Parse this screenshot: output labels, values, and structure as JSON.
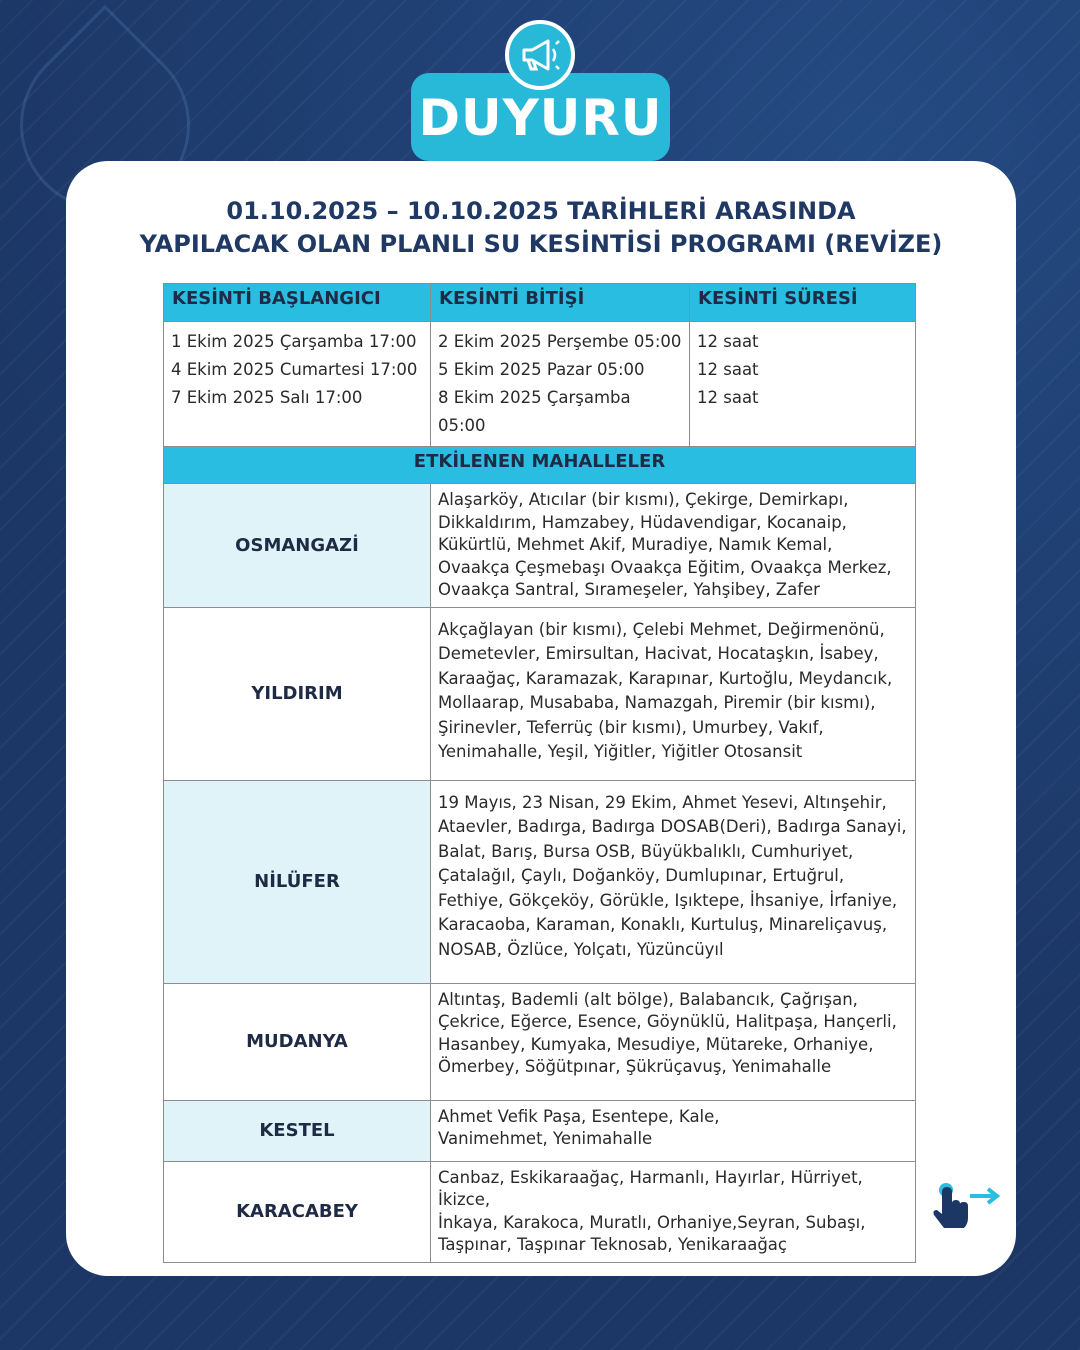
{
  "badge": {
    "label": "DUYURU",
    "icon": "megaphone-icon"
  },
  "title": {
    "line1": "01.10.2025 – 10.10.2025 TARİHLERİ ARASINDA",
    "line2": "YAPILACAK OLAN PLANLI SU KESİNTİSİ PROGRAMI (REVİZE)"
  },
  "schedule": {
    "headers": [
      "KESİNTİ BAŞLANGICI",
      "KESİNTİ BİTİŞİ",
      "KESİNTİ SÜRESİ"
    ],
    "start": [
      "1 Ekim 2025 Çarşamba 17:00",
      "4 Ekim 2025 Cumartesi 17:00",
      "7 Ekim 2025 Salı 17:00"
    ],
    "end": [
      "2 Ekim 2025 Perşembe 05:00",
      "5 Ekim 2025 Pazar 05:00",
      "8 Ekim 2025 Çarşamba 05:00"
    ],
    "duration": [
      "12 saat",
      "12 saat",
      "12 saat"
    ]
  },
  "affected": {
    "header": "ETKİLENEN MAHALLELER",
    "districts": [
      {
        "name": "OSMANGAZİ",
        "lines": [
          "Alaşarköy, Atıcılar (bir kısmı), Çekirge, Demirkapı,",
          "Dikkaldırım, Hamzabey, Hüdavendigar, Kocanaip,",
          "Kükürtlü, Mehmet Akif, Muradiye, Namık Kemal,",
          "Ovaakça Çeşmebaşı Ovaakça Eğitim, Ovaakça Merkez,",
          "Ovaakça Santral, Sırameşeler, Yahşibey, Zafer"
        ]
      },
      {
        "name": "YILDIRIM",
        "lines": [
          "Akçağlayan (bir kısmı), Çelebi Mehmet, Değirmenönü,",
          "Demetevler, Emirsultan, Hacivat, Hocataşkın, İsabey,",
          "Karaağaç, Karamazak, Karapınar, Kurtoğlu, Meydancık,",
          "Mollaarap, Musababa, Namazgah, Piremir (bir kısmı),",
          "Şirinevler, Teferrüç (bir kısmı), Umurbey, Vakıf,",
          "Yenimahalle, Yeşil, Yiğitler, Yiğitler Otosansit"
        ]
      },
      {
        "name": "NİLÜFER",
        "lines": [
          "19 Mayıs, 23 Nisan, 29 Ekim, Ahmet Yesevi, Altınşehir,",
          "Ataevler, Badırga, Badırga DOSAB(Deri), Badırga Sanayi,",
          "Balat, Barış, Bursa OSB, Büyükbalıklı, Cumhuriyet,",
          "Çatalağıl, Çaylı, Doğanköy, Dumlupınar, Ertuğrul,",
          "Fethiye, Gökçeköy, Görükle, Işıktepe, İhsaniye, İrfaniye,",
          "Karacaoba, Karaman, Konaklı, Kurtuluş, Minareliçavuş,",
          "NOSAB, Özlüce, Yolçatı, Yüzüncüyıl"
        ]
      },
      {
        "name": "MUDANYA",
        "lines": [
          "Altıntaş, Bademli (alt bölge), Balabancık, Çağrışan,",
          "Çekrice, Eğerce, Esence, Göynüklü, Halitpaşa, Hançerli,",
          "Hasanbey, Kumyaka, Mesudiye, Mütareke, Orhaniye,",
          "Ömerbey, Söğütpınar, Şükrüçavuş, Yenimahalle"
        ]
      },
      {
        "name": "KESTEL",
        "lines": [
          "Ahmet Vefik Paşa, Esentepe, Kale,",
          "Vanimehmet, Yenimahalle"
        ]
      },
      {
        "name": "KARACABEY",
        "lines": [
          "Canbaz, Eskikaraağaç, Harmanlı, Hayırlar, Hürriyet, İkizce,",
          "İnkaya, Karakoca, Muratlı, Orhaniye,Seyran, Subaşı,",
          "Taşpınar, Taşpınar Teknosab, Yenikaraağaç"
        ]
      }
    ]
  },
  "swipe": {
    "icon": "swipe-hand-icon"
  },
  "colors": {
    "background": "#1c3766",
    "accent": "#29bde2",
    "title": "#1f3864",
    "district_bg": "#dff3f8"
  }
}
